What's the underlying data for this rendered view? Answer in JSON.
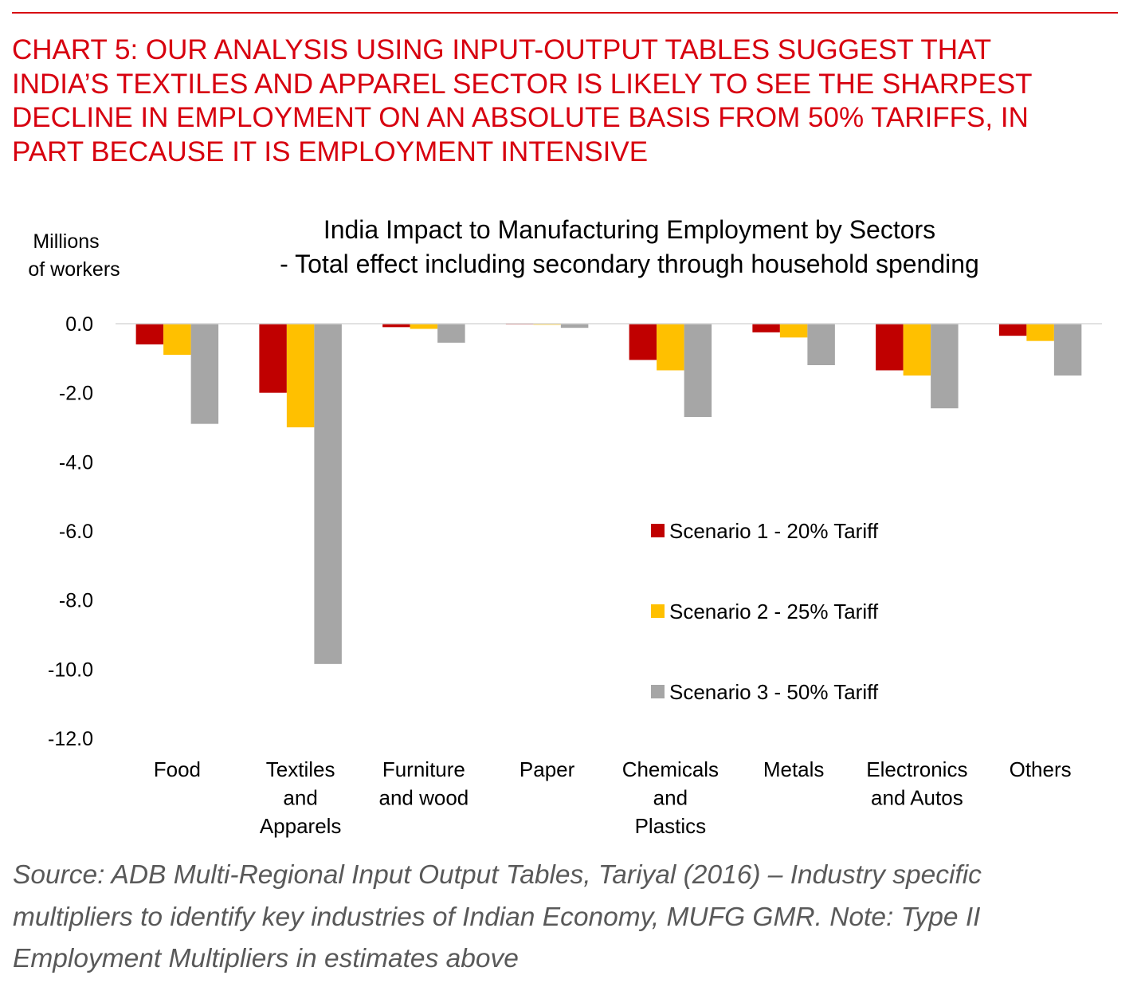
{
  "heading": {
    "lines": [
      "CHART 5: OUR ANALYSIS USING INPUT-OUTPUT TABLES SUGGEST THAT",
      "INDIA’S TEXTILES AND APPAREL SECTOR IS LIKELY TO SEE THE SHARPEST",
      "DECLINE IN EMPLOYMENT ON AN ABSOLUTE BASIS FROM 50% TARIFFS, IN",
      "PART BECAUSE IT IS EMPLOYMENT INTENSIVE"
    ]
  },
  "chart_data": {
    "type": "bar",
    "title_lines": [
      "India Impact to Manufacturing Employment by Sectors",
      "- Total effect including secondary through household spending"
    ],
    "ylabel_lines": [
      "Millions",
      "of workers"
    ],
    "xlabel": "",
    "ylim": [
      -12,
      0
    ],
    "yticks": [
      0,
      -2,
      -4,
      -6,
      -8,
      -10,
      -12
    ],
    "ytick_labels": [
      "0.0",
      "-2.0",
      "-4.0",
      "-6.0",
      "-8.0",
      "-10.0",
      "-12.0"
    ],
    "grid": false,
    "legend_position": "center-right",
    "categories": [
      [
        "Food"
      ],
      [
        "Textiles",
        "and",
        "Apparels"
      ],
      [
        "Furniture",
        "and wood"
      ],
      [
        "Paper"
      ],
      [
        "Chemicals",
        "and",
        "Plastics"
      ],
      [
        "Metals"
      ],
      [
        "Electronics",
        "and Autos"
      ],
      [
        "Others"
      ]
    ],
    "series": [
      {
        "name": "Scenario 1 - 20% Tariff",
        "color": "#c00000",
        "values": [
          -0.6,
          -2.0,
          -0.1,
          -0.02,
          -1.05,
          -0.25,
          -1.35,
          -0.35
        ]
      },
      {
        "name": "Scenario 2 - 25% Tariff",
        "color": "#ffc000",
        "values": [
          -0.9,
          -3.0,
          -0.15,
          -0.03,
          -1.35,
          -0.4,
          -1.5,
          -0.5
        ]
      },
      {
        "name": "Scenario 3 - 50% Tariff",
        "color": "#a6a6a6",
        "values": [
          -2.9,
          -9.85,
          -0.55,
          -0.12,
          -2.7,
          -1.2,
          -2.45,
          -1.5
        ]
      }
    ]
  },
  "source": {
    "lines": [
      "Source: ADB Multi-Regional Input Output Tables, Tariyal (2016) – Industry specific",
      "multipliers to identify key industries of Indian Economy, MUFG GMR.  Note: Type II",
      "Employment Multipliers in estimates above"
    ]
  }
}
